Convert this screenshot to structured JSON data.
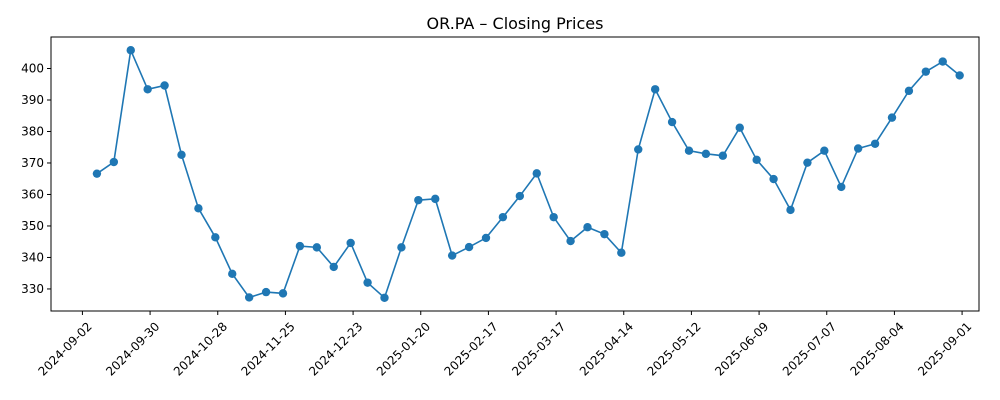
{
  "chart_data": {
    "type": "line",
    "title": "OR.PA – Closing Prices",
    "xlabel": "",
    "ylabel": "",
    "x_ticks": [
      "2024-09-02",
      "2024-09-30",
      "2024-10-28",
      "2024-11-25",
      "2024-12-23",
      "2025-01-20",
      "2025-02-17",
      "2025-03-17",
      "2025-04-14",
      "2025-05-12",
      "2025-06-09",
      "2025-07-07",
      "2025-08-04",
      "2025-09-01"
    ],
    "y_ticks": [
      330,
      340,
      350,
      360,
      370,
      380,
      390,
      400
    ],
    "xlim": [
      "2024-08-20",
      "2025-09-08"
    ],
    "ylim": [
      323,
      410
    ],
    "grid": false,
    "color": "#1f77b4",
    "series": [
      {
        "name": "",
        "x": [
          "2024-09-08",
          "2024-09-15",
          "2024-09-22",
          "2024-09-29",
          "2024-10-06",
          "2024-10-13",
          "2024-10-20",
          "2024-10-27",
          "2024-11-03",
          "2024-11-10",
          "2024-11-17",
          "2024-11-24",
          "2024-12-01",
          "2024-12-08",
          "2024-12-15",
          "2024-12-22",
          "2024-12-29",
          "2025-01-05",
          "2025-01-12",
          "2025-01-19",
          "2025-01-26",
          "2025-02-02",
          "2025-02-09",
          "2025-02-16",
          "2025-02-23",
          "2025-03-02",
          "2025-03-09",
          "2025-03-16",
          "2025-03-23",
          "2025-03-30",
          "2025-04-06",
          "2025-04-13",
          "2025-04-20",
          "2025-04-27",
          "2025-05-04",
          "2025-05-11",
          "2025-05-18",
          "2025-05-25",
          "2025-06-01",
          "2025-06-08",
          "2025-06-15",
          "2025-06-22",
          "2025-06-29",
          "2025-07-06",
          "2025-07-13",
          "2025-07-20",
          "2025-07-27",
          "2025-08-03",
          "2025-08-10",
          "2025-08-17",
          "2025-08-24",
          "2025-08-31"
        ],
        "y": [
          366.6,
          370.3,
          405.8,
          393.4,
          394.6,
          372.6,
          355.6,
          346.4,
          334.8,
          327.3,
          329.0,
          328.6,
          343.6,
          343.2,
          337.0,
          344.6,
          332.0,
          327.2,
          343.2,
          358.2,
          358.6,
          340.6,
          343.3,
          346.2,
          352.8,
          359.5,
          366.7,
          352.8,
          345.2,
          349.6,
          347.4,
          341.5,
          374.3,
          393.4,
          383.0,
          373.9,
          372.9,
          372.3,
          381.2,
          371.0,
          364.9,
          355.1,
          370.1,
          373.9,
          362.4,
          374.6,
          376.1,
          384.4,
          392.9,
          399.0,
          402.2,
          397.8
        ]
      }
    ]
  }
}
